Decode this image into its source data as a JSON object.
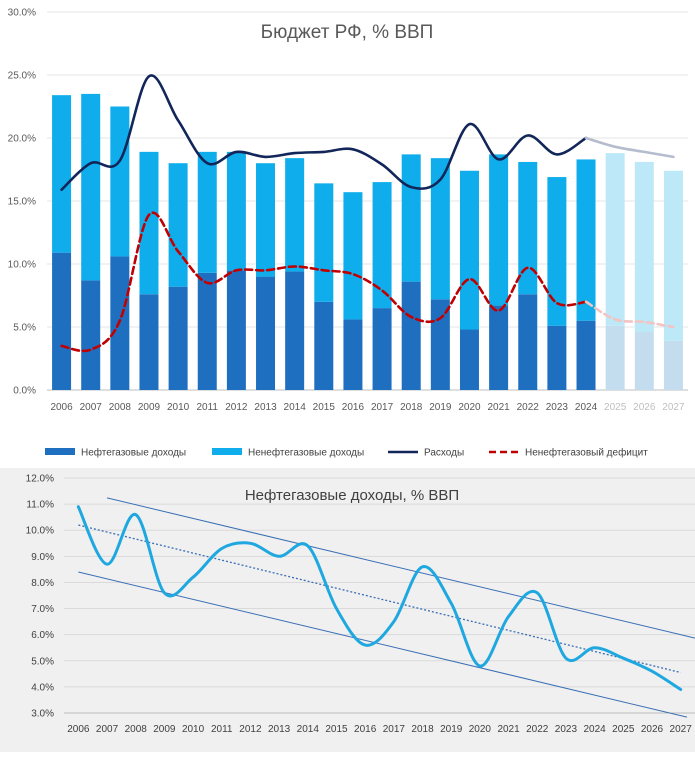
{
  "chart_data": [
    {
      "type": "bar",
      "title": "Бюджет РФ, % ВВП",
      "categories": [
        "2006",
        "2007",
        "2008",
        "2009",
        "2010",
        "2011",
        "2012",
        "2013",
        "2014",
        "2015",
        "2016",
        "2017",
        "2018",
        "2019",
        "2020",
        "2021",
        "2022",
        "2023",
        "2024",
        "2025",
        "2026",
        "2027"
      ],
      "forecast_from": "2025",
      "ylim": [
        0,
        30
      ],
      "yticks": [
        "0.0%",
        "5.0%",
        "10.0%",
        "15.0%",
        "20.0%",
        "25.0%",
        "30.0%"
      ],
      "stacked": true,
      "series": [
        {
          "name": "Нефтегазовые доходы",
          "kind": "bar",
          "color": "#1f6fc0",
          "forecast_color": "#c3dcee",
          "values": [
            10.9,
            8.7,
            10.6,
            7.6,
            8.2,
            9.3,
            9.5,
            9.0,
            9.4,
            7.0,
            5.6,
            6.5,
            8.6,
            7.2,
            4.8,
            6.7,
            7.6,
            5.1,
            5.5,
            5.1,
            4.6,
            3.9
          ]
        },
        {
          "name": "Ненефтегазовые доходы",
          "kind": "bar",
          "color": "#0fadeb",
          "forecast_color": "#bde8f8",
          "values": [
            12.5,
            14.8,
            11.9,
            11.3,
            9.8,
            9.6,
            9.4,
            9.0,
            9.0,
            9.4,
            10.1,
            10.0,
            10.1,
            11.2,
            12.6,
            12.0,
            10.5,
            11.8,
            12.8,
            13.7,
            13.5,
            13.5
          ]
        },
        {
          "name": "Расходы",
          "kind": "line",
          "color": "#12265a",
          "forecast_color": "#b5bccd",
          "values": [
            15.9,
            18.0,
            18.2,
            24.9,
            21.4,
            18.0,
            18.9,
            18.5,
            18.8,
            18.9,
            19.1,
            17.9,
            16.1,
            16.7,
            21.1,
            18.3,
            20.2,
            18.7,
            20.0,
            19.3,
            18.9,
            18.5
          ]
        },
        {
          "name": "Ненефтегазовый дефицит",
          "kind": "line",
          "dashed": true,
          "color": "#c00000",
          "forecast_color": "#f2c4c4",
          "values": [
            3.5,
            3.2,
            5.5,
            13.9,
            11.0,
            8.5,
            9.5,
            9.5,
            9.8,
            9.5,
            9.2,
            7.9,
            5.8,
            5.7,
            8.8,
            6.3,
            9.7,
            6.9,
            7.0,
            5.6,
            5.4,
            5.0
          ]
        }
      ]
    },
    {
      "type": "line",
      "title": "Нефтегазовые доходы, % ВВП",
      "categories": [
        "2006",
        "2007",
        "2008",
        "2009",
        "2010",
        "2011",
        "2012",
        "2013",
        "2014",
        "2015",
        "2016",
        "2017",
        "2018",
        "2019",
        "2020",
        "2021",
        "2022",
        "2023",
        "2024",
        "2025",
        "2026",
        "2027"
      ],
      "ylim": [
        3,
        12
      ],
      "yticks": [
        "3.0%",
        "4.0%",
        "5.0%",
        "6.0%",
        "7.0%",
        "8.0%",
        "9.0%",
        "10.0%",
        "11.0%",
        "12.0%"
      ],
      "series": [
        {
          "name": "Нефтегазовые доходы",
          "color": "#1fa8e0",
          "values": [
            10.9,
            8.7,
            10.6,
            7.6,
            8.2,
            9.3,
            9.5,
            9.0,
            9.4,
            7.0,
            5.6,
            6.5,
            8.6,
            7.2,
            4.8,
            6.7,
            7.6,
            5.1,
            5.5,
            5.1,
            4.6,
            3.9
          ]
        }
      ],
      "trend": {
        "start": 10.2,
        "end": 4.55,
        "color": "#3a6fb5"
      },
      "channel": {
        "upper_start": 11.5,
        "upper_end": 6.0,
        "lower_start": 8.4,
        "lower_end": 2.9,
        "color": "#3a6fb5"
      }
    }
  ]
}
